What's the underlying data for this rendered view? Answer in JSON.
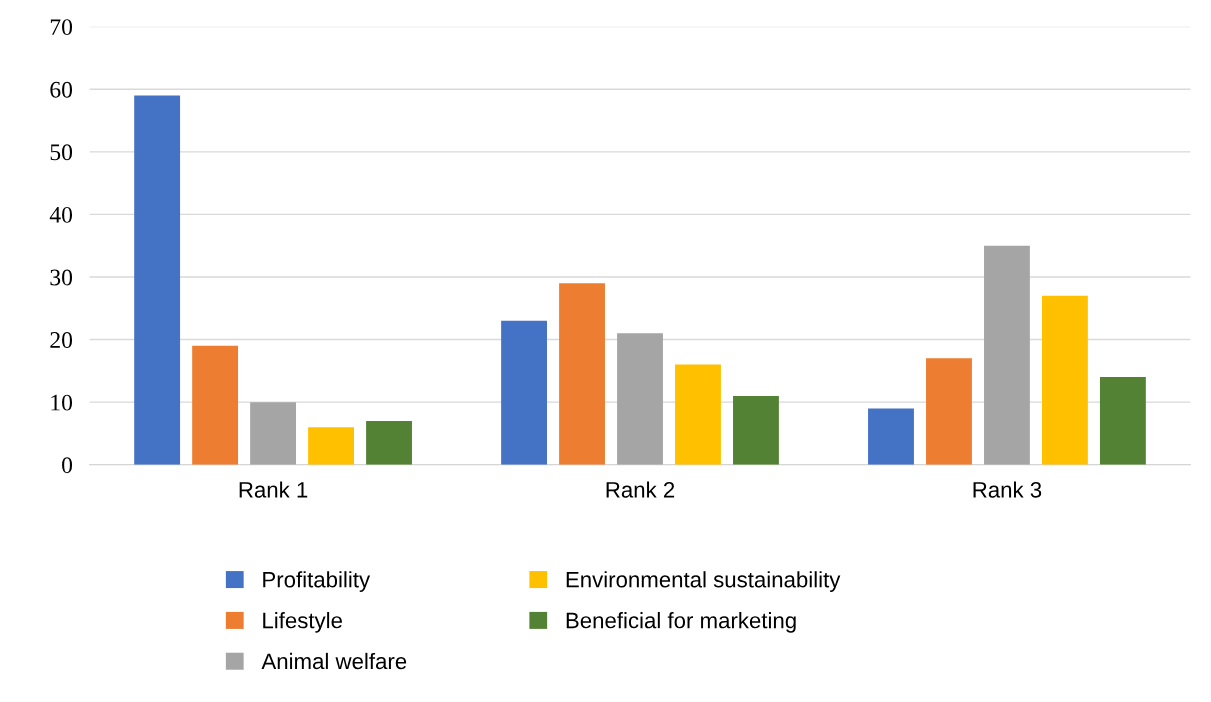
{
  "chart_data": {
    "type": "bar",
    "categories": [
      "Rank 1",
      "Rank 2",
      "Rank 3"
    ],
    "series": [
      {
        "name": "Profitability",
        "color": "#4472c4",
        "values": [
          59,
          23,
          9
        ]
      },
      {
        "name": "Lifestyle",
        "color": "#ed7d31",
        "values": [
          19,
          29,
          17
        ]
      },
      {
        "name": "Animal welfare",
        "color": "#a5a5a5",
        "values": [
          10,
          21,
          35
        ]
      },
      {
        "name": "Environmental sustainability",
        "color": "#ffc000",
        "values": [
          6,
          16,
          27
        ]
      },
      {
        "name": "Beneficial for marketing",
        "color": "#548235",
        "values": [
          7,
          11,
          14
        ]
      }
    ],
    "ylim": [
      0,
      70
    ],
    "yticks": [
      0,
      10,
      20,
      30,
      40,
      50,
      60,
      70
    ],
    "grid": "y",
    "legend": "bottom"
  }
}
